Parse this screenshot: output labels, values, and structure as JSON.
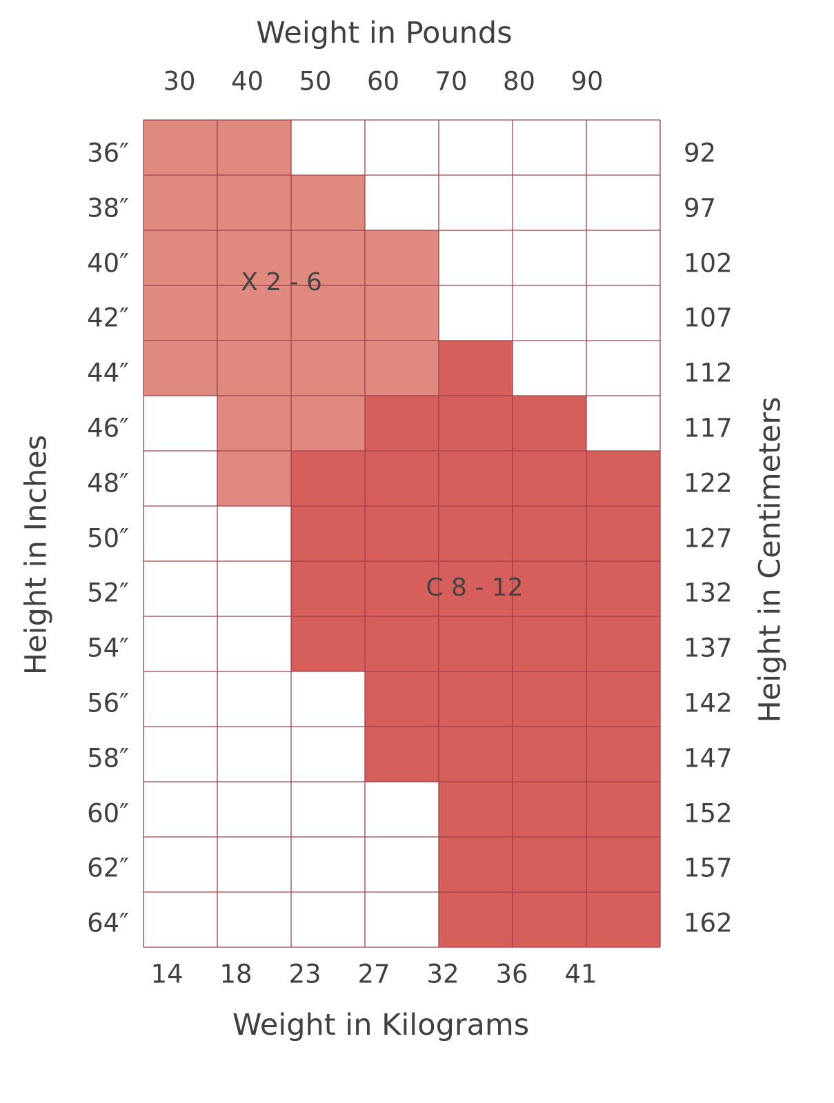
{
  "chart_data": {
    "type": "heatmap",
    "top_axis": {
      "title": "Weight in Pounds",
      "ticks": [
        "30",
        "40",
        "50",
        "60",
        "70",
        "80",
        "90"
      ]
    },
    "bottom_axis": {
      "title": "Weight in Kilograms",
      "ticks": [
        "14",
        "18",
        "23",
        "27",
        "32",
        "36",
        "41"
      ]
    },
    "left_axis": {
      "title": "Height in Inches",
      "ticks": [
        "36″",
        "38″",
        "40″",
        "42″",
        "44″",
        "46″",
        "48″",
        "50″",
        "52″",
        "54″",
        "56″",
        "58″",
        "60″",
        "62″",
        "64″"
      ]
    },
    "right_axis": {
      "title": "Height in Centimeters",
      "ticks": [
        "92",
        "97",
        "102",
        "107",
        "112",
        "117",
        "122",
        "127",
        "132",
        "137",
        "142",
        "147",
        "152",
        "157",
        "162"
      ]
    },
    "zones": [
      {
        "code": 1,
        "label": "X 2 - 6",
        "color": "#e0897f"
      },
      {
        "code": 2,
        "label": "C 8 - 12",
        "color": "#d65e5b"
      }
    ],
    "cells": [
      [
        1,
        1,
        0,
        0,
        0,
        0,
        0
      ],
      [
        1,
        1,
        1,
        0,
        0,
        0,
        0
      ],
      [
        1,
        1,
        1,
        1,
        0,
        0,
        0
      ],
      [
        1,
        1,
        1,
        1,
        0,
        0,
        0
      ],
      [
        1,
        1,
        1,
        1,
        2,
        0,
        0
      ],
      [
        0,
        1,
        1,
        2,
        2,
        2,
        0
      ],
      [
        0,
        1,
        2,
        2,
        2,
        2,
        2
      ],
      [
        0,
        0,
        2,
        2,
        2,
        2,
        2
      ],
      [
        0,
        0,
        2,
        2,
        2,
        2,
        2
      ],
      [
        0,
        0,
        2,
        2,
        2,
        2,
        2
      ],
      [
        0,
        0,
        0,
        2,
        2,
        2,
        2
      ],
      [
        0,
        0,
        0,
        2,
        2,
        2,
        2
      ],
      [
        0,
        0,
        0,
        0,
        2,
        2,
        2
      ],
      [
        0,
        0,
        0,
        0,
        2,
        2,
        2
      ],
      [
        0,
        0,
        0,
        0,
        2,
        2,
        2
      ]
    ],
    "grid_line_color": "#a0404a",
    "empty_color": "#ffffff"
  }
}
